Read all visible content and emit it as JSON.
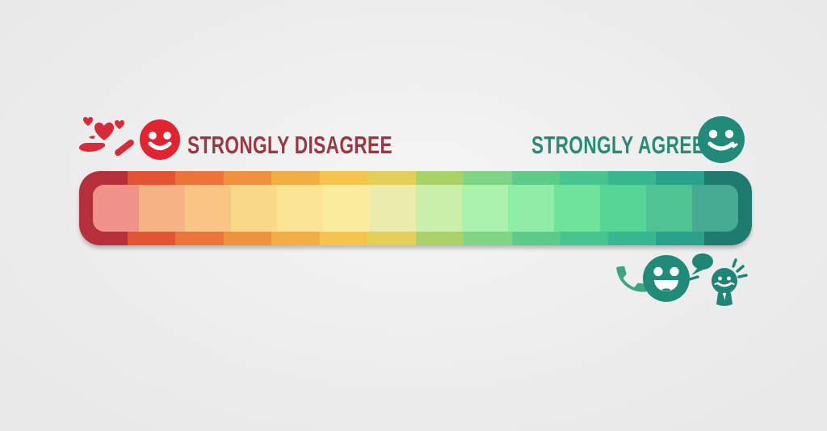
{
  "page": {
    "background_color": "#ededee",
    "description": "Likert agreement scale illustration"
  },
  "scale": {
    "left_label": "STRONGLY DISAGREE",
    "right_label": "STRONGLY AGREE",
    "left_label_color": "#9b3742",
    "right_label_color": "#2a8a75",
    "segments_outer": [
      "#b5303a",
      "#e25434",
      "#eb7439",
      "#f0913d",
      "#f2ad44",
      "#f4c44c",
      "#e4cf58",
      "#abd169",
      "#7ed387",
      "#5ecb8a",
      "#47c48f",
      "#38b690",
      "#2aa28b",
      "#1f7a70"
    ],
    "segments_inner": [
      "#f2938b",
      "#f6b285",
      "#f9c584",
      "#fbd98b",
      "#fce495",
      "#fbeb9c",
      "#e9ecab",
      "#c9efab",
      "#abf2ad",
      "#8feda6",
      "#6fe29b",
      "#57d595",
      "#4fc492",
      "#47ab93"
    ]
  },
  "icons": {
    "hand_with_hearts": {
      "name": "hand-with-hearts-icon",
      "color": "#d62c3a"
    },
    "red_smiley": {
      "name": "red-smiley-icon",
      "color": "#e02531"
    },
    "teal_smiley": {
      "name": "teal-smiley-icon",
      "color": "#218a78"
    },
    "phone": {
      "name": "phone-icon",
      "color": "#3fa57f"
    },
    "laughing_smiley": {
      "name": "laughing-smiley-icon",
      "color": "#218a78"
    },
    "speech_idea_person": {
      "name": "speech-bubble-idea-person-icon",
      "color": "#1f8576"
    }
  }
}
